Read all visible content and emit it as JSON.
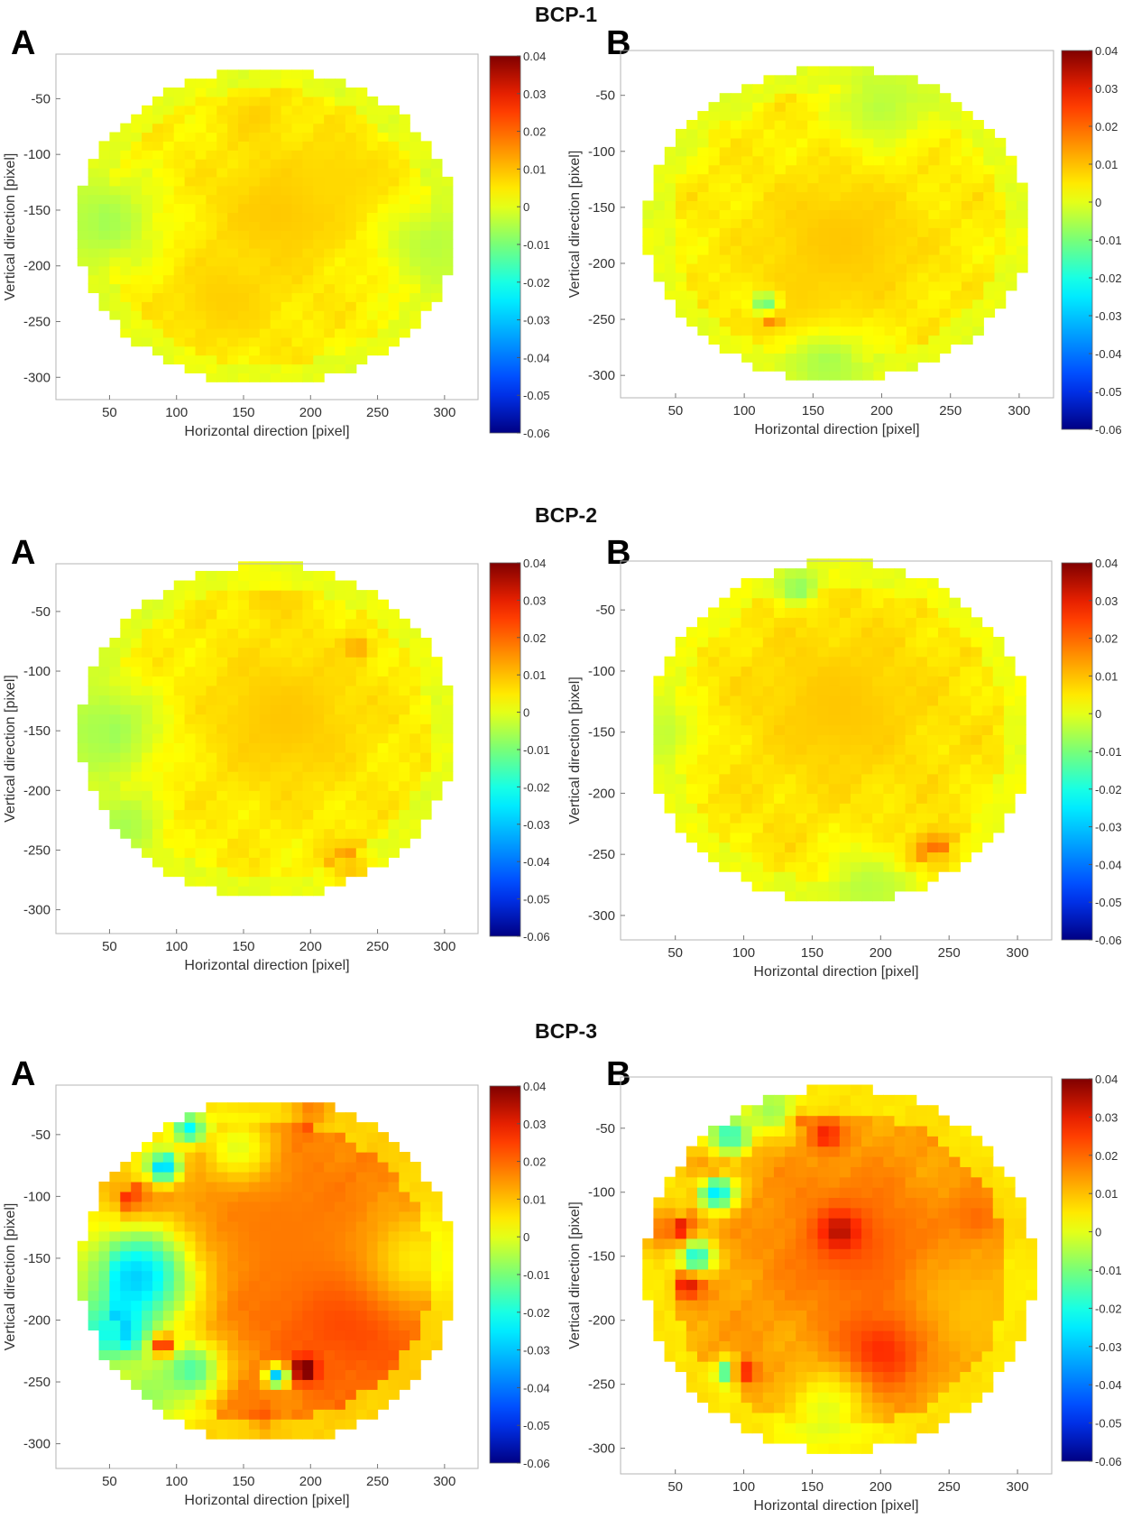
{
  "chart_data": [
    {
      "group": "BCP-1",
      "panels": [
        {
          "panel_label": "A",
          "type": "heatmap",
          "xlabel": "Horizontal direction [pixel]",
          "ylabel": "Vertical direction [pixel]",
          "x_ticks": [
            50,
            100,
            150,
            200,
            250,
            300
          ],
          "y_ticks": [
            -50,
            -100,
            -150,
            -200,
            -250,
            -300
          ],
          "xlim": [
            10,
            325
          ],
          "ylim": [
            -320,
            -10
          ],
          "colorbar": {
            "min": -0.06,
            "max": 0.04,
            "ticks": [
              "0.04",
              "0.03",
              "0.02",
              "0.01",
              "0",
              "-0.01",
              "-0.02",
              "-0.03",
              "-0.04",
              "-0.05",
              "-0.06"
            ]
          },
          "region": {
            "center": [
              167,
              -165
            ],
            "radius": 142
          },
          "base_value": 0.004,
          "blobs": [
            {
              "x": 160,
              "y": -65,
              "v": 0.008,
              "r": 14
            },
            {
              "x": 180,
              "y": -150,
              "v": 0.009,
              "r": 40
            },
            {
              "x": 135,
              "y": -230,
              "v": 0.008,
              "r": 30
            },
            {
              "x": 45,
              "y": -160,
              "v": -0.006,
              "r": 30
            },
            {
              "x": 290,
              "y": -180,
              "v": -0.004,
              "r": 28
            },
            {
              "x": 220,
              "y": -120,
              "v": 0.007,
              "r": 25
            }
          ]
        },
        {
          "panel_label": "B",
          "type": "heatmap",
          "xlabel": "Horizontal direction [pixel]",
          "ylabel": "Vertical direction [pixel]",
          "x_ticks": [
            50,
            100,
            150,
            200,
            250,
            300
          ],
          "y_ticks": [
            -50,
            -100,
            -150,
            -200,
            -250,
            -300
          ],
          "xlim": [
            10,
            325
          ],
          "ylim": [
            -320,
            -10
          ],
          "colorbar": {
            "min": -0.06,
            "max": 0.04,
            "ticks": [
              "0.04",
              "0.03",
              "0.02",
              "0.01",
              "0",
              "-0.01",
              "-0.02",
              "-0.03",
              "-0.04",
              "-0.05",
              "-0.06"
            ]
          },
          "region": {
            "center": [
              168,
              -165
            ],
            "radius": 140
          },
          "base_value": 0.004,
          "blobs": [
            {
              "x": 170,
              "y": -180,
              "v": 0.009,
              "r": 45
            },
            {
              "x": 140,
              "y": -240,
              "v": 0.008,
              "r": 25
            },
            {
              "x": 120,
              "y": -250,
              "v": 0.02,
              "r": 5
            },
            {
              "x": 200,
              "y": -60,
              "v": -0.004,
              "r": 25
            },
            {
              "x": 160,
              "y": -290,
              "v": -0.006,
              "r": 22
            },
            {
              "x": 115,
              "y": -235,
              "v": -0.012,
              "r": 7
            }
          ]
        }
      ]
    },
    {
      "group": "BCP-2",
      "panels": [
        {
          "panel_label": "A",
          "type": "heatmap",
          "xlabel": "Horizontal direction [pixel]",
          "ylabel": "Vertical direction [pixel]",
          "x_ticks": [
            50,
            100,
            150,
            200,
            250,
            300
          ],
          "y_ticks": [
            -50,
            -100,
            -150,
            -200,
            -250,
            -300
          ],
          "xlim": [
            10,
            325
          ],
          "ylim": [
            -320,
            -10
          ],
          "colorbar": {
            "min": -0.06,
            "max": 0.04,
            "ticks": [
              "0.04",
              "0.03",
              "0.02",
              "0.01",
              "0",
              "-0.01",
              "-0.02",
              "-0.03",
              "-0.04",
              "-0.05",
              "-0.06"
            ]
          },
          "region": {
            "center": [
              168,
              -150
            ],
            "radius": 140
          },
          "base_value": 0.004,
          "blobs": [
            {
              "x": 180,
              "y": -140,
              "v": 0.009,
              "r": 45
            },
            {
              "x": 230,
              "y": -265,
              "v": 0.02,
              "r": 12
            },
            {
              "x": 235,
              "y": -80,
              "v": 0.014,
              "r": 6
            },
            {
              "x": 45,
              "y": -150,
              "v": -0.007,
              "r": 30
            },
            {
              "x": 60,
              "y": -230,
              "v": -0.007,
              "r": 18
            },
            {
              "x": 170,
              "y": -35,
              "v": 0.008,
              "r": 15
            }
          ]
        },
        {
          "panel_label": "B",
          "type": "heatmap",
          "xlabel": "Horizontal direction [pixel]",
          "ylabel": "Vertical direction [pixel]",
          "x_ticks": [
            50,
            100,
            150,
            200,
            250,
            300
          ],
          "y_ticks": [
            -50,
            -100,
            -150,
            -200,
            -250,
            -300
          ],
          "xlim": [
            10,
            325
          ],
          "ylim": [
            -320,
            -10
          ],
          "colorbar": {
            "min": -0.06,
            "max": 0.04,
            "ticks": [
              "0.04",
              "0.03",
              "0.02",
              "0.01",
              "0",
              "-0.01",
              "-0.02",
              "-0.03",
              "-0.04",
              "-0.05",
              "-0.06"
            ]
          },
          "region": {
            "center": [
              170,
              -150
            ],
            "radius": 140
          },
          "base_value": 0.005,
          "blobs": [
            {
              "x": 170,
              "y": -130,
              "v": 0.009,
              "r": 45
            },
            {
              "x": 240,
              "y": -250,
              "v": 0.022,
              "r": 12
            },
            {
              "x": 140,
              "y": -30,
              "v": -0.01,
              "r": 10
            },
            {
              "x": 190,
              "y": -275,
              "v": -0.004,
              "r": 22
            },
            {
              "x": 45,
              "y": -150,
              "v": -0.002,
              "r": 20
            }
          ]
        }
      ]
    },
    {
      "group": "BCP-3",
      "panels": [
        {
          "panel_label": "A",
          "type": "heatmap",
          "xlabel": "Horizontal direction [pixel]",
          "ylabel": "Vertical direction [pixel]",
          "x_ticks": [
            50,
            100,
            150,
            200,
            250,
            300
          ],
          "y_ticks": [
            -50,
            -100,
            -150,
            -200,
            -250,
            -300
          ],
          "xlim": [
            10,
            325
          ],
          "ylim": [
            -320,
            -10
          ],
          "colorbar": {
            "min": -0.06,
            "max": 0.04,
            "ticks": [
              "0.04",
              "0.03",
              "0.02",
              "0.01",
              "0",
              "-0.01",
              "-0.02",
              "-0.03",
              "-0.04",
              "-0.05",
              "-0.06"
            ]
          },
          "region": {
            "center": [
              168,
              -160
            ],
            "radius": 140
          },
          "base_value": 0.017,
          "blobs": [
            {
              "x": 230,
              "y": -190,
              "v": 0.026,
              "r": 40
            },
            {
              "x": 180,
              "y": -130,
              "v": 0.018,
              "r": 45
            },
            {
              "x": 60,
              "y": -100,
              "v": 0.032,
              "r": 12
            },
            {
              "x": 70,
              "y": -165,
              "v": -0.028,
              "r": 30
            },
            {
              "x": 50,
              "y": -210,
              "v": -0.035,
              "r": 20
            },
            {
              "x": 90,
              "y": -75,
              "v": -0.03,
              "r": 10
            },
            {
              "x": 110,
              "y": -45,
              "v": -0.045,
              "r": 8
            },
            {
              "x": 110,
              "y": -240,
              "v": -0.015,
              "r": 18
            },
            {
              "x": 195,
              "y": -240,
              "v": 0.045,
              "r": 7
            },
            {
              "x": 175,
              "y": -245,
              "v": -0.03,
              "r": 6
            },
            {
              "x": 200,
              "y": -30,
              "v": 0.035,
              "r": 9
            },
            {
              "x": 280,
              "y": -150,
              "v": 0.005,
              "r": 30
            },
            {
              "x": 80,
              "y": -260,
              "v": -0.01,
              "r": 18
            },
            {
              "x": 145,
              "y": -60,
              "v": 0.0,
              "r": 20
            },
            {
              "x": 90,
              "y": -220,
              "v": 0.03,
              "r": 6
            },
            {
              "x": 165,
              "y": -285,
              "v": 0.03,
              "r": 6
            }
          ]
        },
        {
          "panel_label": "B",
          "type": "heatmap",
          "xlabel": "Horizontal direction [pixel]",
          "ylabel": "Vertical direction [pixel]",
          "x_ticks": [
            50,
            100,
            150,
            200,
            250,
            300
          ],
          "y_ticks": [
            -50,
            -100,
            -150,
            -200,
            -250,
            -300
          ],
          "xlim": [
            10,
            325
          ],
          "ylim": [
            -320,
            -10
          ],
          "colorbar": {
            "min": -0.06,
            "max": 0.04,
            "ticks": [
              "0.04",
              "0.03",
              "0.02",
              "0.01",
              "0",
              "-0.01",
              "-0.02",
              "-0.03",
              "-0.04",
              "-0.05",
              "-0.06"
            ]
          },
          "region": {
            "center": [
              170,
              -160
            ],
            "radius": 142
          },
          "base_value": 0.013,
          "blobs": [
            {
              "x": 180,
              "y": -140,
              "v": 0.022,
              "r": 40
            },
            {
              "x": 200,
              "y": -225,
              "v": 0.028,
              "r": 22
            },
            {
              "x": 170,
              "y": -130,
              "v": 0.035,
              "r": 10
            },
            {
              "x": 45,
              "y": -130,
              "v": 0.04,
              "r": 12
            },
            {
              "x": 60,
              "y": -170,
              "v": 0.036,
              "r": 8
            },
            {
              "x": 70,
              "y": -80,
              "v": 0.032,
              "r": 10
            },
            {
              "x": 90,
              "y": -55,
              "v": -0.03,
              "r": 10
            },
            {
              "x": 80,
              "y": -100,
              "v": -0.025,
              "r": 10
            },
            {
              "x": 65,
              "y": -150,
              "v": -0.02,
              "r": 10
            },
            {
              "x": 90,
              "y": -240,
              "v": -0.03,
              "r": 7
            },
            {
              "x": 100,
              "y": -240,
              "v": 0.032,
              "r": 7
            },
            {
              "x": 160,
              "y": -55,
              "v": 0.03,
              "r": 8
            },
            {
              "x": 140,
              "y": -40,
              "v": 0.032,
              "r": 6
            },
            {
              "x": 270,
              "y": -120,
              "v": 0.02,
              "r": 15
            },
            {
              "x": 270,
              "y": -190,
              "v": 0.01,
              "r": 25
            },
            {
              "x": 160,
              "y": -270,
              "v": 0.0,
              "r": 22
            },
            {
              "x": 120,
              "y": -35,
              "v": -0.008,
              "r": 14
            }
          ]
        }
      ]
    }
  ]
}
